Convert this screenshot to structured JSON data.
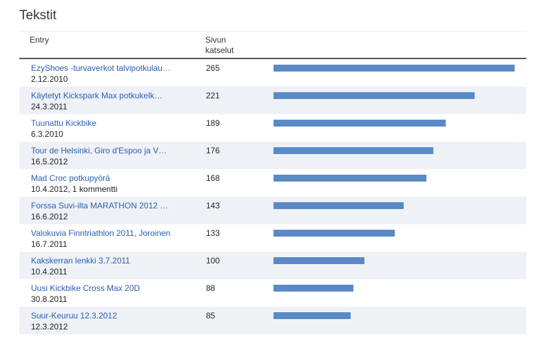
{
  "title": "Tekstit",
  "columns": {
    "entry": "Entry",
    "views_line1": "Sivun",
    "views_line2": "katselut"
  },
  "max_views": 265,
  "rows": [
    {
      "title": "EzyShoes -turvaverkot talvipotkulau…",
      "sub": "2.12.2010",
      "views": 265
    },
    {
      "title": "Käytetyt Kickspark Max potkukelk…",
      "sub": "24.3.2011",
      "views": 221
    },
    {
      "title": "Tuunattu Kickbike",
      "sub": "6.3.2010",
      "views": 189
    },
    {
      "title": "Tour de Helsinki, Giro d'Espoo ja V…",
      "sub": "16.5.2012",
      "views": 176
    },
    {
      "title": "Mad Croc potkupyörä",
      "sub": "10.4.2012, 1 kommentti",
      "views": 168
    },
    {
      "title": "Forssa Suvi-ilta MARATHON 2012 …",
      "sub": "16.6.2012",
      "views": 143
    },
    {
      "title": "Valokuvia Finntriathlon 2011, Joroinen",
      "sub": "16.7.2011",
      "views": 133
    },
    {
      "title": "Kakskerran lenkki 3.7.2011",
      "sub": "10.4.2011",
      "views": 100
    },
    {
      "title": "Uusi Kickbike Cross Max 20D",
      "sub": "30.8.2011",
      "views": 88
    },
    {
      "title": "Suur-Keuruu 12.3.2012",
      "sub": "12.3.2012",
      "views": 85
    }
  ],
  "colors": {
    "bar": "#5a8ac6",
    "link": "#2a5db0",
    "row_shade": "#eef2f7"
  }
}
